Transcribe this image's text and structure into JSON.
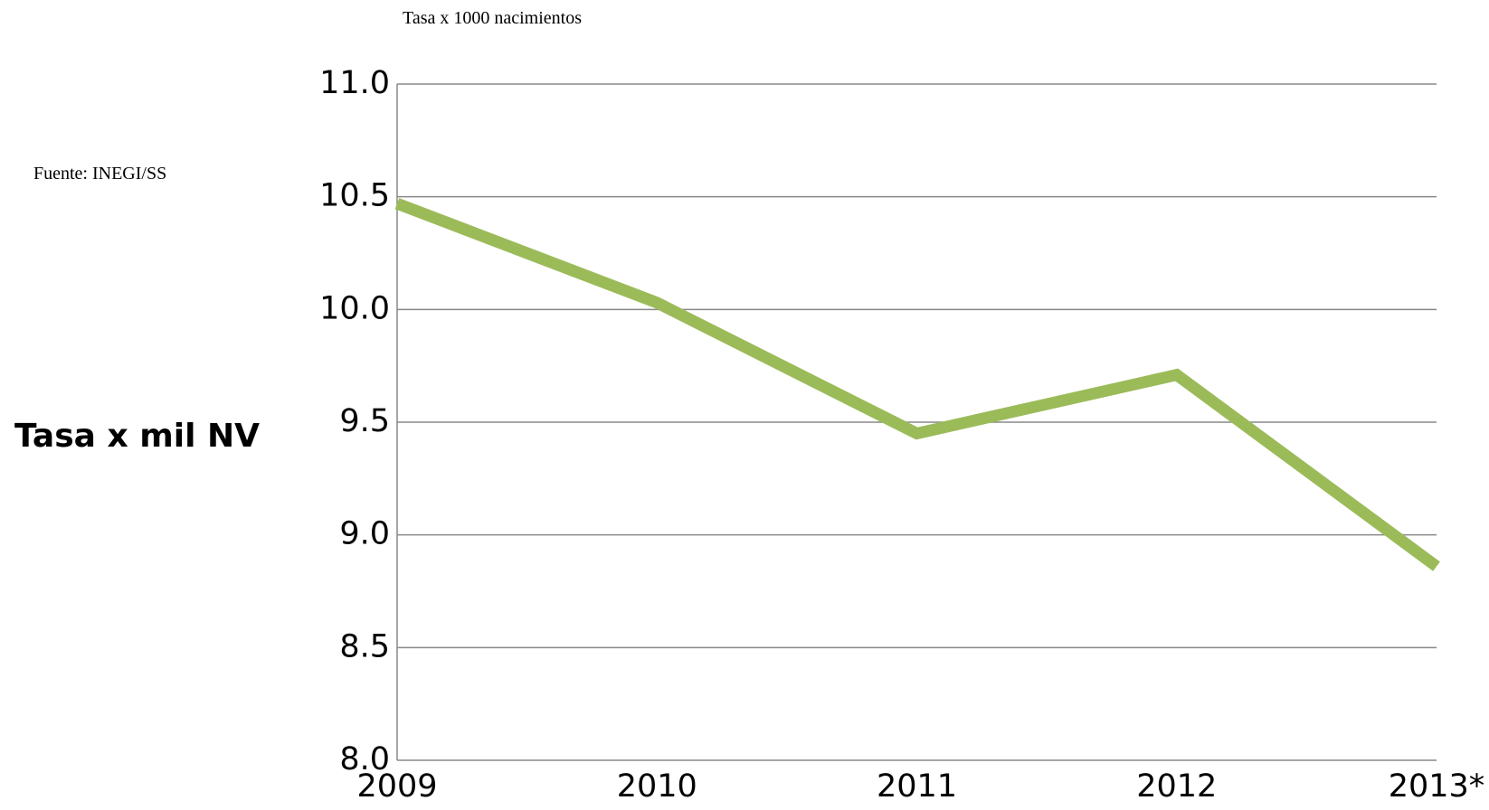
{
  "chart_data": {
    "type": "line",
    "subtitle": "Tasa x 1000 nacimientos",
    "source": "Fuente: INEGI/SS",
    "ylabel": "Tasa x mil NV",
    "categories": [
      "2009",
      "2010",
      "2011",
      "2012",
      "2013*"
    ],
    "series": [
      {
        "name": "Tasa",
        "color": "#9bbb59",
        "values": [
          10.47,
          10.03,
          9.45,
          9.71,
          8.86
        ]
      }
    ],
    "ylim": [
      8,
      11
    ],
    "yticks": [
      {
        "value": 8,
        "label": "8.0"
      },
      8.5,
      {
        "value": 9,
        "label": "9.0"
      },
      9.5,
      {
        "value": 10,
        "label": "10.0"
      },
      10.5,
      {
        "value": 11,
        "label": "11.0"
      }
    ],
    "grid": true
  }
}
